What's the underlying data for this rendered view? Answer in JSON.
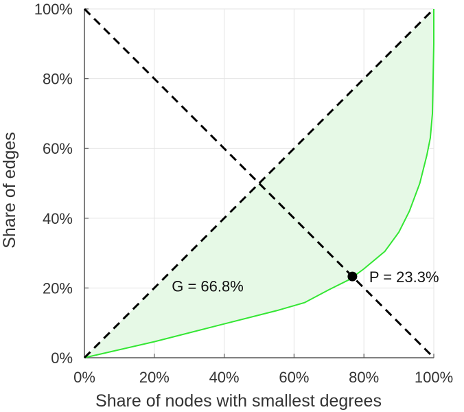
{
  "chart_data": {
    "type": "line",
    "title": "",
    "xlabel": "Share of nodes with smallest degrees",
    "ylabel": "Share of edges",
    "xlim": [
      0,
      100
    ],
    "ylim": [
      0,
      100
    ],
    "grid": true,
    "x_ticks": [
      "0%",
      "20%",
      "40%",
      "60%",
      "80%",
      "100%"
    ],
    "y_ticks": [
      "0%",
      "20%",
      "40%",
      "60%",
      "80%",
      "100%"
    ],
    "tick_values": [
      0,
      20,
      40,
      60,
      80,
      100
    ],
    "series": [
      {
        "style": "solid",
        "color": "#33e633",
        "fill": "#e6f9e6",
        "points": [
          [
            0,
            0
          ],
          [
            20,
            4.6
          ],
          [
            40,
            9.7
          ],
          [
            55,
            13.5
          ],
          [
            63,
            15.8
          ],
          [
            70,
            19.5
          ],
          [
            76,
            22.5
          ],
          [
            80,
            25.5
          ],
          [
            86,
            30.5
          ],
          [
            90,
            36
          ],
          [
            93,
            42
          ],
          [
            96,
            50
          ],
          [
            98,
            58
          ],
          [
            99,
            63
          ],
          [
            99.6,
            70
          ],
          [
            99.8,
            80
          ],
          [
            100,
            90
          ],
          [
            100,
            100
          ]
        ]
      },
      {
        "style": "dashed",
        "color": "#000000",
        "points": [
          [
            0,
            0
          ],
          [
            100,
            100
          ]
        ]
      },
      {
        "style": "dashed",
        "color": "#000000",
        "points": [
          [
            0,
            100
          ],
          [
            100,
            0
          ]
        ]
      }
    ],
    "marker": {
      "x": 76.7,
      "y": 23.3,
      "color": "#000000"
    },
    "annotations": [
      {
        "text": "G = 66.8%",
        "x": 25,
        "y": 19
      },
      {
        "text": "P = 23.3%",
        "x": 81.5,
        "y": 21.7
      }
    ]
  }
}
